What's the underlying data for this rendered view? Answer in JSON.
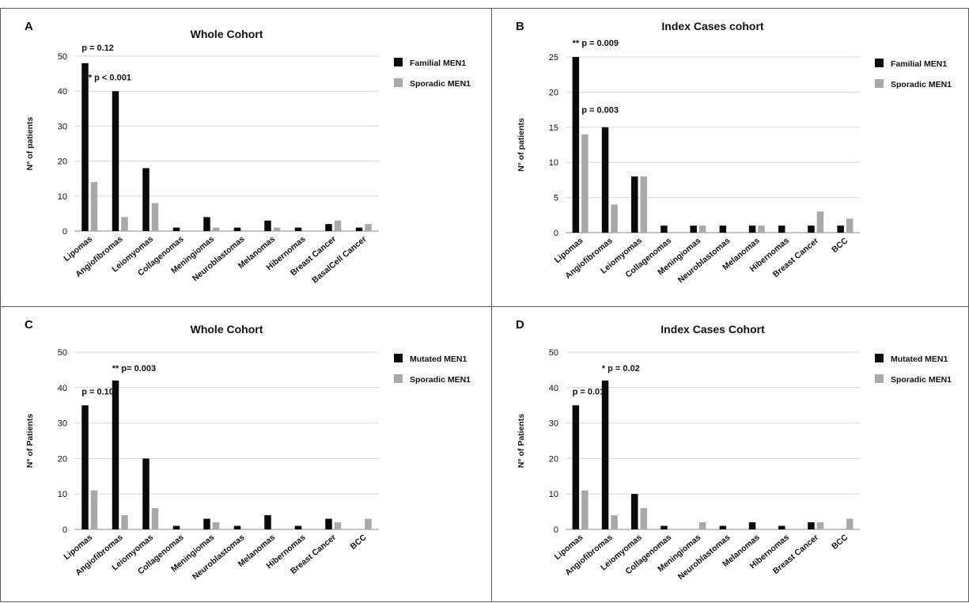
{
  "chart_data": [
    {
      "panel": "A",
      "type": "bar",
      "title": "Whole Cohort",
      "ylabel": "N° of patients",
      "xlabel": "",
      "ylim": [
        0,
        50
      ],
      "yticks": [
        "0",
        "10",
        "20",
        "30",
        "40",
        "50"
      ],
      "grid": true,
      "legend_position": "right",
      "categories": [
        "Lipomas",
        "Angiofibromas",
        "Leiomyomas",
        "Collagenomas",
        "Meningiomas",
        "Neuroblastomas",
        "Melanomas",
        "Hibernomas",
        "Breast Cancer",
        "BasalCell Cancer"
      ],
      "series": [
        {
          "name": "Familial MEN1",
          "color": "#0a0a0a",
          "values": [
            48,
            40,
            18,
            1,
            4,
            1,
            3,
            1,
            2,
            1
          ]
        },
        {
          "name": "Sporadic MEN1",
          "color": "#a9a9a9",
          "values": [
            14,
            4,
            8,
            0,
            1,
            0,
            1,
            0,
            3,
            2
          ]
        }
      ],
      "annotations": [
        {
          "text": "p = 0.12",
          "category": 0,
          "y": 52.5
        },
        {
          "text": "*** p < 0.001",
          "category": 0,
          "y": 44
        }
      ]
    },
    {
      "panel": "B",
      "type": "bar",
      "title": "Index Cases cohort",
      "ylabel": "N° of patients",
      "xlabel": "",
      "ylim": [
        0,
        25
      ],
      "yticks": [
        "0",
        "5",
        "10",
        "15",
        "20",
        "25"
      ],
      "grid": true,
      "legend_position": "right",
      "categories": [
        "Lipomas",
        "Angiofibromas",
        "Leiomyomas",
        "Collagenomas",
        "Meningiomas",
        "Neuroblastomas",
        "Melanomas",
        "Hibernomas",
        "Breast Cancer",
        "BCC"
      ],
      "series": [
        {
          "name": "Familial MEN1",
          "color": "#0a0a0a",
          "values": [
            25,
            15,
            8,
            1,
            1,
            1,
            1,
            1,
            1,
            1
          ]
        },
        {
          "name": "Sporadic MEN1",
          "color": "#a9a9a9",
          "values": [
            14,
            4,
            8,
            0,
            1,
            0,
            1,
            0,
            3,
            2
          ]
        }
      ],
      "annotations": [
        {
          "text": "** p = 0.009",
          "category": 0,
          "y": 27
        },
        {
          "text": "** p = 0.003",
          "category": 0,
          "y": 17.5
        }
      ]
    },
    {
      "panel": "C",
      "type": "bar",
      "title": "Whole Cohort",
      "ylabel": "N° of Patients",
      "xlabel": "",
      "ylim": [
        0,
        50
      ],
      "yticks": [
        "0",
        "10",
        "20",
        "30",
        "40",
        "50"
      ],
      "grid": true,
      "legend_position": "right",
      "categories": [
        "Lipomas",
        "Angiofibromas",
        "Leiomyomas",
        "Collagenomas",
        "Meningiomas",
        "Neuroblastomas",
        "Melanomas",
        "Hibernomas",
        "Breast Cancer",
        "BCC"
      ],
      "series": [
        {
          "name": "Mutated MEN1",
          "color": "#0a0a0a",
          "values": [
            35,
            42,
            20,
            1,
            3,
            1,
            4,
            1,
            3,
            0
          ]
        },
        {
          "name": "Sporadic MEN1",
          "color": "#a9a9a9",
          "values": [
            11,
            4,
            6,
            0,
            2,
            0,
            0,
            0,
            2,
            3
          ]
        }
      ],
      "annotations": [
        {
          "text": "** p= 0.003",
          "category": 1,
          "y": 45.5
        },
        {
          "text": "p = 0.10",
          "category": 0,
          "y": 39
        }
      ]
    },
    {
      "panel": "D",
      "type": "bar",
      "title": "Index Cases Cohort",
      "ylabel": "N° of Patients",
      "xlabel": "",
      "ylim": [
        0,
        50
      ],
      "yticks": [
        "0",
        "10",
        "20",
        "30",
        "40",
        "50"
      ],
      "grid": true,
      "legend_position": "right",
      "categories": [
        "Lipomas",
        "Angiofibromas",
        "Leiomyomas",
        "Collagenomas",
        "Meningiomas",
        "Neuroblastomas",
        "Melanomas",
        "Hibernomas",
        "Breast Cancer",
        "BCC"
      ],
      "series": [
        {
          "name": "Mutated MEN1",
          "color": "#0a0a0a",
          "values": [
            35,
            42,
            10,
            1,
            0,
            1,
            2,
            1,
            2,
            0
          ]
        },
        {
          "name": "Sporadic MEN1",
          "color": "#a9a9a9",
          "values": [
            11,
            4,
            6,
            0,
            2,
            0,
            0,
            0,
            2,
            3
          ]
        }
      ],
      "annotations": [
        {
          "text": "* p = 0.02",
          "category": 1,
          "y": 45.5
        },
        {
          "text": "p = 0.01",
          "category": 0,
          "y": 39
        }
      ]
    }
  ]
}
